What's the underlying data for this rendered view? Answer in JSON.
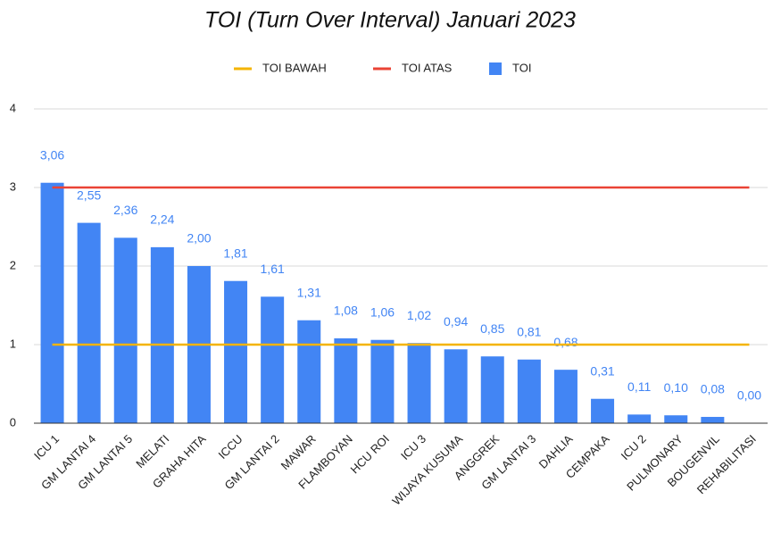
{
  "chart_data": {
    "type": "bar",
    "title": "TOI (Turn Over Interval) Januari 2023",
    "categories": [
      "ICU 1",
      "GM LANTAI 4",
      "GM LANTAI 5",
      "MELATI",
      "GRAHA HITA",
      "ICCU",
      "GM LANTAI 2",
      "MAWAR",
      "FLAMBOYAN",
      "HCU ROI",
      "ICU 3",
      "WIJAYA KUSUMA",
      "ANGGREK",
      "GM LANTAI 3",
      "DAHLIA",
      "CEMPAKA",
      "ICU 2",
      "PULMONARY",
      "BOUGENVIL",
      "REHABILITASI"
    ],
    "series": [
      {
        "name": "TOI BAWAH",
        "type": "line",
        "color": "#f4b400",
        "values": [
          1,
          1,
          1,
          1,
          1,
          1,
          1,
          1,
          1,
          1,
          1,
          1,
          1,
          1,
          1,
          1,
          1,
          1,
          1,
          1
        ]
      },
      {
        "name": "TOI ATAS",
        "type": "line",
        "color": "#ea4335",
        "values": [
          3,
          3,
          3,
          3,
          3,
          3,
          3,
          3,
          3,
          3,
          3,
          3,
          3,
          3,
          3,
          3,
          3,
          3,
          3,
          3
        ]
      },
      {
        "name": "TOI",
        "type": "bar",
        "color": "#4285f4",
        "values": [
          3.06,
          2.55,
          2.36,
          2.24,
          2.0,
          1.81,
          1.61,
          1.31,
          1.08,
          1.06,
          1.02,
          0.94,
          0.85,
          0.81,
          0.68,
          0.31,
          0.11,
          0.1,
          0.08,
          0.0
        ],
        "value_labels": [
          "3,06",
          "2,55",
          "2,36",
          "2,24",
          "2,00",
          "1,81",
          "1,61",
          "1,31",
          "1,08",
          "1,06",
          "1,02",
          "0,94",
          "0,85",
          "0,81",
          "0,68",
          "0,31",
          "0,11",
          "0,10",
          "0,08",
          "0,00"
        ]
      }
    ],
    "ylim": [
      0,
      4
    ],
    "yticks": [
      0,
      1,
      2,
      3,
      4
    ],
    "grid": true
  }
}
